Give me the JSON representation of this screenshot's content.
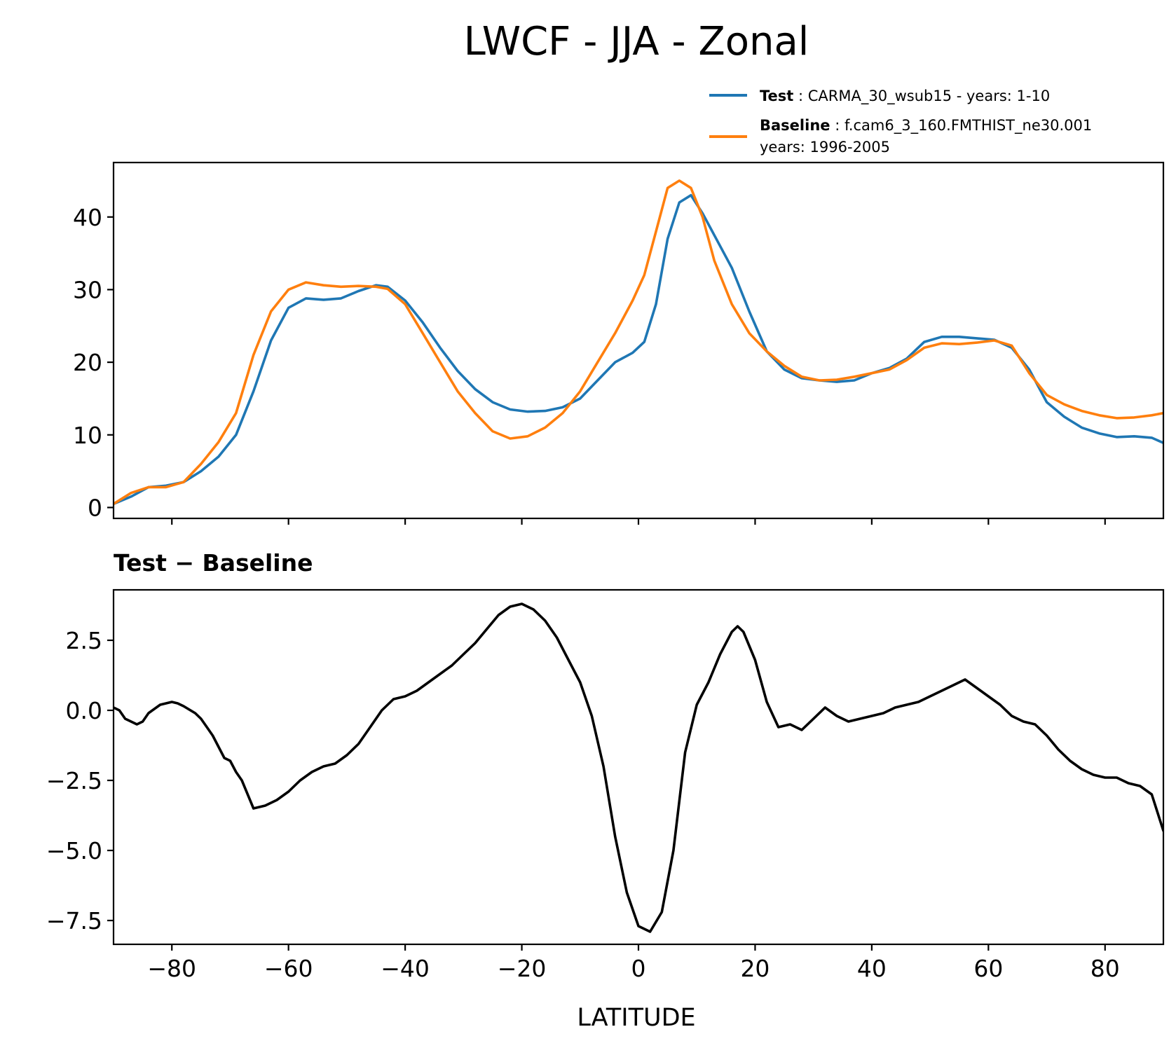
{
  "chart_data": {
    "type": "line",
    "title": "LWCF - JJA - Zonal",
    "xlabel": "LATITUDE",
    "xlim": [
      -90,
      90
    ],
    "xticks": [
      -80,
      -60,
      -40,
      -20,
      0,
      20,
      40,
      60,
      80
    ],
    "xtick_labels": [
      "−80",
      "−60",
      "−40",
      "−20",
      "0",
      "20",
      "40",
      "60",
      "80"
    ],
    "legend": {
      "placement": "top-right",
      "entries": [
        {
          "name": "Test",
          "desc": "CARMA_30_wsub15 - years: 1-10",
          "line2": "",
          "color": "#1f77b4"
        },
        {
          "name": "Baseline",
          "desc": "f.cam6_3_160.FMTHIST_ne30.001",
          "line2": "years: 1996-2005",
          "color": "#ff7f0e"
        }
      ]
    },
    "panels": [
      {
        "id": "top",
        "subtitle": "",
        "ylim": [
          -1.5,
          47.5
        ],
        "yticks": [
          0,
          10,
          20,
          30,
          40
        ],
        "ytick_labels": [
          "0",
          "10",
          "20",
          "30",
          "40"
        ],
        "show_xtick_labels": false,
        "series": [
          {
            "name": "Test",
            "color": "#1f77b4",
            "x": [
              -90,
              -87,
              -84,
              -81,
              -78,
              -75,
              -72,
              -69,
              -66,
              -63,
              -60,
              -57,
              -54,
              -51,
              -48,
              -45,
              -43,
              -40,
              -37,
              -34,
              -31,
              -28,
              -25,
              -22,
              -19,
              -16,
              -13,
              -10,
              -7,
              -4,
              -1,
              1,
              3,
              5,
              7,
              9,
              11,
              13,
              16,
              19,
              22,
              25,
              28,
              31,
              34,
              37,
              40,
              43,
              46,
              49,
              52,
              55,
              58,
              61,
              64,
              67,
              70,
              73,
              76,
              79,
              82,
              85,
              88,
              90
            ],
            "y": [
              0.5,
              1.5,
              2.8,
              3.0,
              3.5,
              5.0,
              7.0,
              10.0,
              16.0,
              23.0,
              27.5,
              28.8,
              28.6,
              28.8,
              29.8,
              30.6,
              30.4,
              28.5,
              25.5,
              22.0,
              18.8,
              16.3,
              14.5,
              13.5,
              13.2,
              13.3,
              13.8,
              15.0,
              17.5,
              20.0,
              21.3,
              22.8,
              28.0,
              37.0,
              42.0,
              43.0,
              40.5,
              37.5,
              33.0,
              27.0,
              21.5,
              19.0,
              17.8,
              17.5,
              17.3,
              17.5,
              18.5,
              19.2,
              20.5,
              22.8,
              23.5,
              23.5,
              23.3,
              23.1,
              22.0,
              19.0,
              14.5,
              12.5,
              11.0,
              10.2,
              9.7,
              9.8,
              9.6,
              8.9
            ]
          },
          {
            "name": "Baseline",
            "color": "#ff7f0e",
            "x": [
              -90,
              -87,
              -84,
              -81,
              -78,
              -75,
              -72,
              -69,
              -66,
              -63,
              -60,
              -57,
              -54,
              -51,
              -48,
              -45,
              -43,
              -40,
              -37,
              -34,
              -31,
              -28,
              -25,
              -22,
              -19,
              -16,
              -13,
              -10,
              -7,
              -4,
              -1,
              1,
              3,
              5,
              7,
              9,
              11,
              13,
              16,
              19,
              22,
              25,
              28,
              31,
              34,
              37,
              40,
              43,
              46,
              49,
              52,
              55,
              58,
              61,
              64,
              67,
              70,
              73,
              76,
              79,
              82,
              85,
              88,
              90
            ],
            "y": [
              0.5,
              2.0,
              2.8,
              2.8,
              3.5,
              6.0,
              9.0,
              13.0,
              21.0,
              27.0,
              30.0,
              31.0,
              30.6,
              30.4,
              30.5,
              30.4,
              30.1,
              28.0,
              24.0,
              20.0,
              16.0,
              13.0,
              10.5,
              9.5,
              9.8,
              11.0,
              13.0,
              16.0,
              20.0,
              24.0,
              28.5,
              32.0,
              38.0,
              44.0,
              45.0,
              44.0,
              40.0,
              34.0,
              28.0,
              24.0,
              21.5,
              19.5,
              18.0,
              17.5,
              17.6,
              18.0,
              18.5,
              19.0,
              20.3,
              22.0,
              22.6,
              22.5,
              22.7,
              23.0,
              22.3,
              18.5,
              15.5,
              14.2,
              13.3,
              12.7,
              12.3,
              12.4,
              12.7,
              13.0
            ]
          }
        ]
      },
      {
        "id": "bottom",
        "subtitle": "Test − Baseline",
        "ylim": [
          -8.35,
          4.3
        ],
        "yticks": [
          2.5,
          0.0,
          -2.5,
          -5.0,
          -7.5
        ],
        "ytick_labels": [
          "2.5",
          "0.0",
          "−2.5",
          "−5.0",
          "−7.5"
        ],
        "show_xtick_labels": true,
        "series": [
          {
            "name": "Test − Baseline",
            "color": "#000000",
            "x": [
              -90,
              -89,
              -88,
              -87,
              -86,
              -85,
              -84,
              -82,
              -80,
              -79,
              -78,
              -76,
              -75,
              -74,
              -73,
              -72,
              -71,
              -70,
              -69,
              -68,
              -66,
              -64,
              -62,
              -60,
              -58,
              -56,
              -54,
              -52,
              -50,
              -48,
              -46,
              -44,
              -42,
              -40,
              -38,
              -36,
              -34,
              -32,
              -30,
              -28,
              -26,
              -24,
              -22,
              -20,
              -18,
              -16,
              -14,
              -12,
              -10,
              -8,
              -6,
              -4,
              -2,
              0,
              2,
              4,
              6,
              8,
              10,
              12,
              14,
              16,
              17,
              18,
              20,
              22,
              24,
              26,
              28,
              30,
              32,
              34,
              36,
              38,
              40,
              42,
              44,
              46,
              48,
              50,
              52,
              54,
              56,
              58,
              60,
              62,
              64,
              66,
              68,
              70,
              72,
              74,
              76,
              78,
              80,
              82,
              84,
              86,
              88,
              90
            ],
            "y": [
              0.1,
              0.0,
              -0.3,
              -0.4,
              -0.5,
              -0.4,
              -0.1,
              0.2,
              0.3,
              0.25,
              0.15,
              -0.1,
              -0.3,
              -0.6,
              -0.9,
              -1.3,
              -1.7,
              -1.8,
              -2.2,
              -2.5,
              -3.5,
              -3.4,
              -3.2,
              -2.9,
              -2.5,
              -2.2,
              -2.0,
              -1.9,
              -1.6,
              -1.2,
              -0.6,
              0.0,
              0.4,
              0.5,
              0.7,
              1.0,
              1.3,
              1.6,
              2.0,
              2.4,
              2.9,
              3.4,
              3.7,
              3.8,
              3.6,
              3.2,
              2.6,
              1.8,
              1.0,
              -0.2,
              -2.0,
              -4.5,
              -6.5,
              -7.7,
              -7.9,
              -7.2,
              -5.0,
              -1.5,
              0.2,
              1.0,
              2.0,
              2.8,
              3.0,
              2.8,
              1.8,
              0.3,
              -0.6,
              -0.5,
              -0.7,
              -0.3,
              0.1,
              -0.2,
              -0.4,
              -0.3,
              -0.2,
              -0.1,
              0.1,
              0.2,
              0.3,
              0.5,
              0.7,
              0.9,
              1.1,
              0.8,
              0.5,
              0.2,
              -0.2,
              -0.4,
              -0.5,
              -0.9,
              -1.4,
              -1.8,
              -2.1,
              -2.3,
              -2.4,
              -2.4,
              -2.6,
              -2.7,
              -3.0,
              -4.3
            ]
          }
        ]
      }
    ]
  }
}
